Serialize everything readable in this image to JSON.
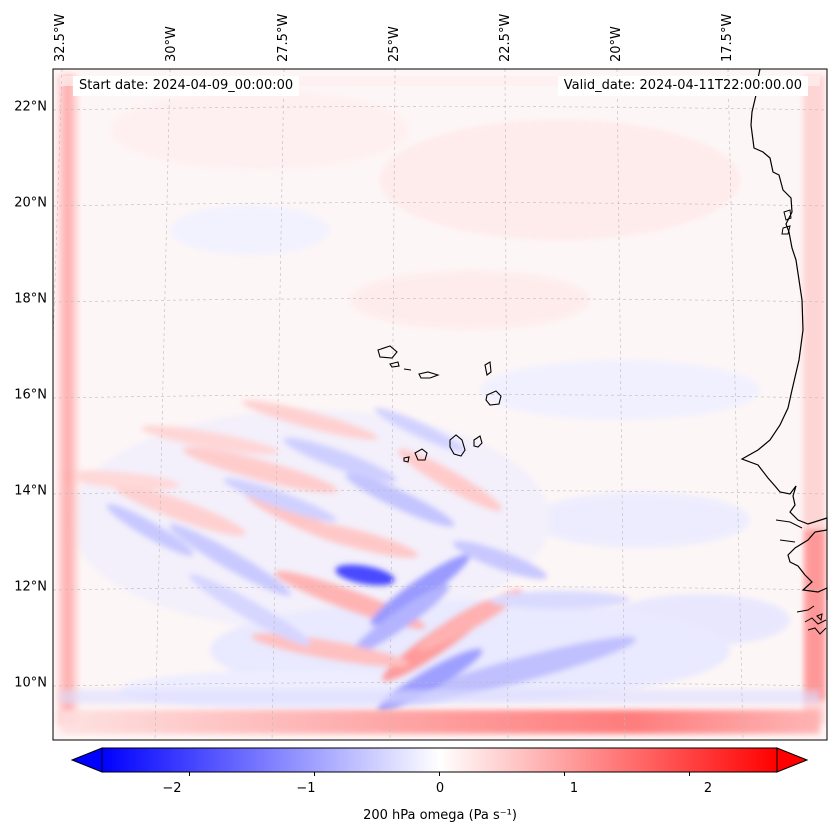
{
  "map": {
    "start_date_label": "Start date: 2024-04-09_00:00:00",
    "valid_date_label": "Valid_date: 2024-04-11T22:00:00.00",
    "lat_labels": [
      "22°N",
      "20°N",
      "18°N",
      "16°N",
      "14°N",
      "12°N",
      "10°N"
    ],
    "lon_labels": [
      "32.5°W",
      "30°W",
      "27.5°W",
      "25°W",
      "22.5°W",
      "20°W",
      "17.5°W"
    ],
    "colors": {
      "negative": "#0000ff",
      "zero": "#ffffff",
      "positive": "#ff0000",
      "coast": "#000000"
    }
  },
  "colorbar": {
    "label": "200 hPa omega (Pa s⁻¹)",
    "min": -2.7,
    "max": 2.7,
    "extend": "both",
    "ticks": [
      {
        "value": -2,
        "label": "−2"
      },
      {
        "value": -1,
        "label": "−1"
      },
      {
        "value": 0,
        "label": "0"
      },
      {
        "value": 1,
        "label": "1"
      },
      {
        "value": 2,
        "label": "2"
      }
    ]
  }
}
